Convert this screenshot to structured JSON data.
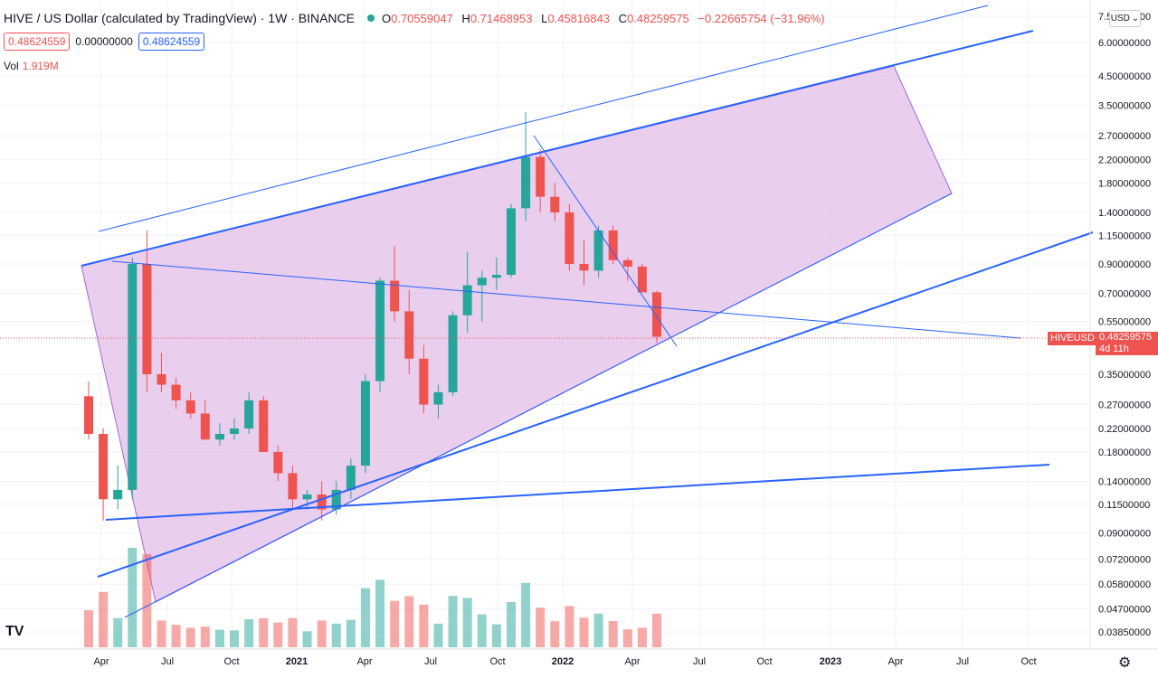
{
  "header": {
    "symbol_title": "HIVE / US Dollar (calculated by TradingView) · 1W · BINANCE",
    "ohlc": {
      "o_label": "O",
      "o_value": "0.70559047",
      "h_label": "H",
      "h_value": "0.71468953",
      "l_label": "L",
      "l_value": "0.45816843",
      "c_label": "C",
      "c_value": "0.48259575",
      "change": "−0.22665754 (−31.96%)"
    },
    "bid": "0.48624559",
    "spread": "0.00000000",
    "ask": "0.48624559",
    "vol_label": "Vol",
    "vol_value": "1.919M",
    "currency": "USD"
  },
  "price_tag": {
    "symbol": "HIVEUSD",
    "price": "0.48259575",
    "countdown": "4d 11h"
  },
  "logo_text": "TV",
  "colors": {
    "up": "#26a69a",
    "down": "#ef5350",
    "drawing_line": "#2962ff",
    "fill_zone": "#e1bee7"
  },
  "icons": {
    "settings": "gear-icon",
    "status": "market-open-dot-icon",
    "dropdown": "chevron-down-icon"
  },
  "chart_data": {
    "type": "candlestick",
    "scale": "log",
    "y_axis_ticks": [
      "7.50000000",
      "6.00000000",
      "4.50000000",
      "3.50000000",
      "2.70000000",
      "2.20000000",
      "1.80000000",
      "1.40000000",
      "1.15000000",
      "0.90000000",
      "0.70000000",
      "0.55000000",
      "0.35000000",
      "0.27000000",
      "0.22000000",
      "0.18000000",
      "0.14000000",
      "0.11500000",
      "0.09000000",
      "0.07200000",
      "0.05800000",
      "0.04700000",
      "0.03850000"
    ],
    "x_axis_ticks": [
      "Apr",
      "Jul",
      "Oct",
      "2021",
      "Apr",
      "Jul",
      "Oct",
      "2022",
      "Apr",
      "Jul",
      "Oct",
      "2023",
      "Apr",
      "Jul",
      "Oct"
    ],
    "last_price": 0.48259575,
    "candles_approx": [
      {
        "o": 0.29,
        "h": 0.33,
        "l": 0.2,
        "c": 0.21
      },
      {
        "o": 0.21,
        "h": 0.22,
        "l": 0.1,
        "c": 0.12
      },
      {
        "o": 0.12,
        "h": 0.16,
        "l": 0.11,
        "c": 0.13
      },
      {
        "o": 0.13,
        "h": 0.95,
        "l": 0.12,
        "c": 0.9
      },
      {
        "o": 0.9,
        "h": 1.2,
        "l": 0.3,
        "c": 0.35
      },
      {
        "o": 0.35,
        "h": 0.42,
        "l": 0.3,
        "c": 0.32
      },
      {
        "o": 0.32,
        "h": 0.34,
        "l": 0.26,
        "c": 0.28
      },
      {
        "o": 0.28,
        "h": 0.3,
        "l": 0.24,
        "c": 0.25
      },
      {
        "o": 0.25,
        "h": 0.28,
        "l": 0.22,
        "c": 0.2
      },
      {
        "o": 0.2,
        "h": 0.23,
        "l": 0.19,
        "c": 0.21
      },
      {
        "o": 0.21,
        "h": 0.24,
        "l": 0.2,
        "c": 0.22
      },
      {
        "o": 0.22,
        "h": 0.3,
        "l": 0.21,
        "c": 0.28
      },
      {
        "o": 0.28,
        "h": 0.29,
        "l": 0.2,
        "c": 0.18
      },
      {
        "o": 0.18,
        "h": 0.19,
        "l": 0.14,
        "c": 0.15
      },
      {
        "o": 0.15,
        "h": 0.16,
        "l": 0.11,
        "c": 0.12
      },
      {
        "o": 0.12,
        "h": 0.13,
        "l": 0.11,
        "c": 0.125
      },
      {
        "o": 0.125,
        "h": 0.14,
        "l": 0.1,
        "c": 0.11
      },
      {
        "o": 0.11,
        "h": 0.14,
        "l": 0.105,
        "c": 0.13
      },
      {
        "o": 0.13,
        "h": 0.17,
        "l": 0.12,
        "c": 0.16
      },
      {
        "o": 0.16,
        "h": 0.35,
        "l": 0.15,
        "c": 0.33
      },
      {
        "o": 0.33,
        "h": 0.8,
        "l": 0.3,
        "c": 0.78
      },
      {
        "o": 0.78,
        "h": 1.05,
        "l": 0.55,
        "c": 0.6
      },
      {
        "o": 0.6,
        "h": 0.72,
        "l": 0.35,
        "c": 0.4
      },
      {
        "o": 0.4,
        "h": 0.45,
        "l": 0.25,
        "c": 0.27
      },
      {
        "o": 0.27,
        "h": 0.32,
        "l": 0.24,
        "c": 0.3
      },
      {
        "o": 0.3,
        "h": 0.6,
        "l": 0.29,
        "c": 0.58
      },
      {
        "o": 0.58,
        "h": 1.0,
        "l": 0.5,
        "c": 0.75
      },
      {
        "o": 0.75,
        "h": 0.85,
        "l": 0.55,
        "c": 0.8
      },
      {
        "o": 0.8,
        "h": 0.95,
        "l": 0.72,
        "c": 0.82
      },
      {
        "o": 0.82,
        "h": 1.5,
        "l": 0.8,
        "c": 1.45
      },
      {
        "o": 1.45,
        "h": 3.3,
        "l": 1.3,
        "c": 2.25
      },
      {
        "o": 2.25,
        "h": 2.4,
        "l": 1.4,
        "c": 1.6
      },
      {
        "o": 1.6,
        "h": 1.8,
        "l": 1.3,
        "c": 1.4
      },
      {
        "o": 1.4,
        "h": 1.5,
        "l": 0.85,
        "c": 0.9
      },
      {
        "o": 0.9,
        "h": 1.1,
        "l": 0.75,
        "c": 0.85
      },
      {
        "o": 0.85,
        "h": 1.25,
        "l": 0.8,
        "c": 1.2
      },
      {
        "o": 1.2,
        "h": 1.25,
        "l": 0.9,
        "c": 0.93
      },
      {
        "o": 0.93,
        "h": 0.95,
        "l": 0.78,
        "c": 0.88
      },
      {
        "o": 0.88,
        "h": 0.9,
        "l": 0.72,
        "c": 0.706
      },
      {
        "o": 0.706,
        "h": 0.715,
        "l": 0.458,
        "c": 0.4826
      }
    ]
  }
}
